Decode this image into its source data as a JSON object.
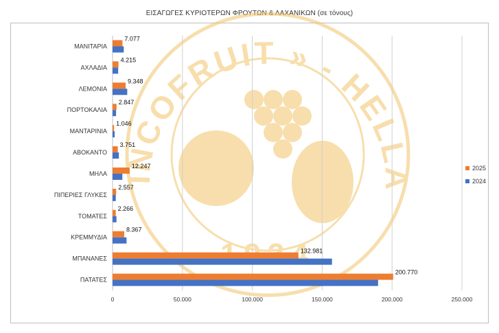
{
  "chart_data": {
    "type": "bar",
    "orientation": "horizontal",
    "title": "ΕΙΣΑΓΩΓΕΣ ΚΥΡΙΟΤΕΡΩΝ ΦΡΟΥΤΩΝ & ΛΑΧΑΝΙΚΩΝ (σε τόνους)",
    "categories": [
      "ΜΑΝΙΤΑΡΙΑ",
      "ΑΧΛΑΔΙΑ",
      "ΛΕΜΟΝΙΑ",
      "ΠΟΡΤΟΚΑΛΙΑ",
      "ΜΑΝΤΑΡΙΝΙΑ",
      "ΑΒΟΚΑΝΤΟ",
      "ΜΗΛΑ",
      "ΠΙΠΕΡΙΕΣ ΓΛΥΚΕΣ",
      "ΤΟΜΑΤΕΣ",
      "ΚΡΕΜΜΥΔΙΑ",
      "ΜΠΑΝΑΝΕΣ",
      "ΠΑΤΑΤΕΣ"
    ],
    "series": [
      {
        "name": "2025",
        "color": "#ED7D31",
        "values": [
          7077,
          4215,
          9348,
          2847,
          1046,
          3751,
          12247,
          2557,
          2266,
          8367,
          132981,
          200770
        ],
        "labels": [
          "7.077",
          "4.215",
          "9.348",
          "2.847",
          "1.046",
          "3.751",
          "12.247",
          "2.557",
          "2.266",
          "8.367",
          "132.981",
          "200.770"
        ]
      },
      {
        "name": "2024",
        "color": "#4472C4",
        "values": [
          8000,
          4000,
          10500,
          2500,
          1500,
          4500,
          7000,
          2300,
          2800,
          10000,
          157000,
          190000
        ]
      }
    ],
    "xlim": [
      0,
      250000
    ],
    "xticks": [
      "0",
      "50.000",
      "100.000",
      "150.000",
      "200.000",
      "250.000"
    ],
    "xtick_values": [
      0,
      50000,
      100000,
      150000,
      200000,
      250000
    ],
    "grid": "vertical",
    "legend": "right"
  },
  "watermark": {
    "text": "« INCOFRUIT » - HELLAS",
    "year": "1934",
    "color": "#F2C46A"
  }
}
